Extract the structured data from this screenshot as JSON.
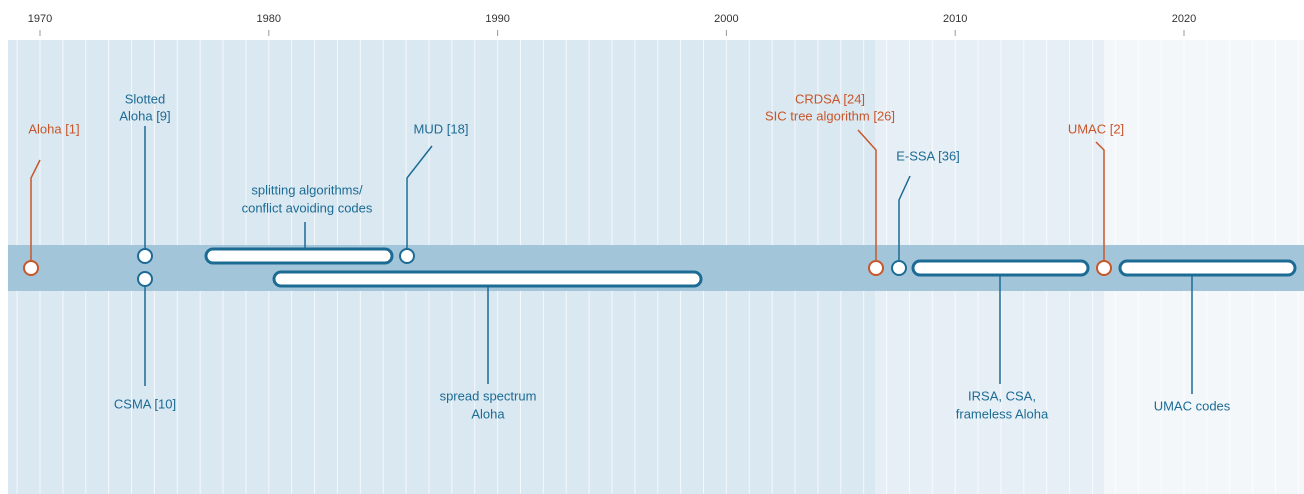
{
  "axis": {
    "labels": [
      "1970",
      "1980",
      "1990",
      "2000",
      "2010",
      "2020"
    ]
  },
  "events": [
    {
      "label": [
        "Aloha [1]"
      ]
    },
    {
      "label": [
        "Slotted",
        "Aloha [9]"
      ]
    },
    {
      "label": [
        "CSMA [10]"
      ]
    },
    {
      "label": [
        "splitting algorithms/",
        "conflict avoiding codes"
      ]
    },
    {
      "label": [
        "MUD [18]"
      ]
    },
    {
      "label": [
        "spread spectrum",
        "Aloha"
      ]
    },
    {
      "label": [
        "CRDSA [24]",
        "SIC tree algorithm [26]"
      ]
    },
    {
      "label": [
        "E-SSA [36]"
      ]
    },
    {
      "label": [
        "IRSA, CSA,",
        "frameless Aloha"
      ]
    },
    {
      "label": [
        "UMAC [2]"
      ]
    },
    {
      "label": [
        "UMAC codes"
      ]
    }
  ]
}
